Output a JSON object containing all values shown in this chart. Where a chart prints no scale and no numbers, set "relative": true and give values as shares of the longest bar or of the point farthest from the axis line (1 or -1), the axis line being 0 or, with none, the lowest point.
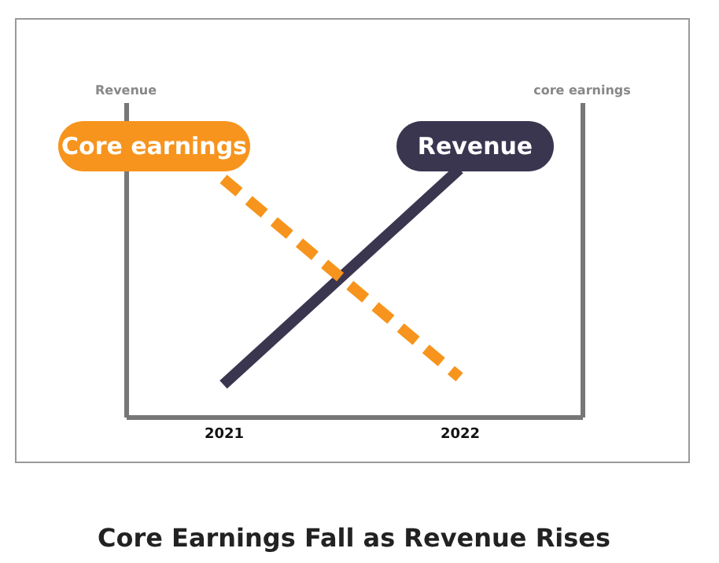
{
  "chart_data": {
    "type": "line",
    "title": "Core Earnings Fall as Revenue Rises",
    "annotations": [
      "Revenue",
      "core earnings"
    ],
    "categories": [
      "2021",
      "2022"
    ],
    "relative": true,
    "legend": false,
    "grid": false,
    "tick_labels": "x",
    "series": [
      {
        "name": "Revenue",
        "color": "#3a3650",
        "values": [
          0.13,
          1
        ],
        "line_style": "solid"
      },
      {
        "name": "Core earnings",
        "color": "#f7941d",
        "values": [
          0.96,
          0.16
        ],
        "axis": "y2",
        "line_style": "dashed"
      }
    ]
  }
}
